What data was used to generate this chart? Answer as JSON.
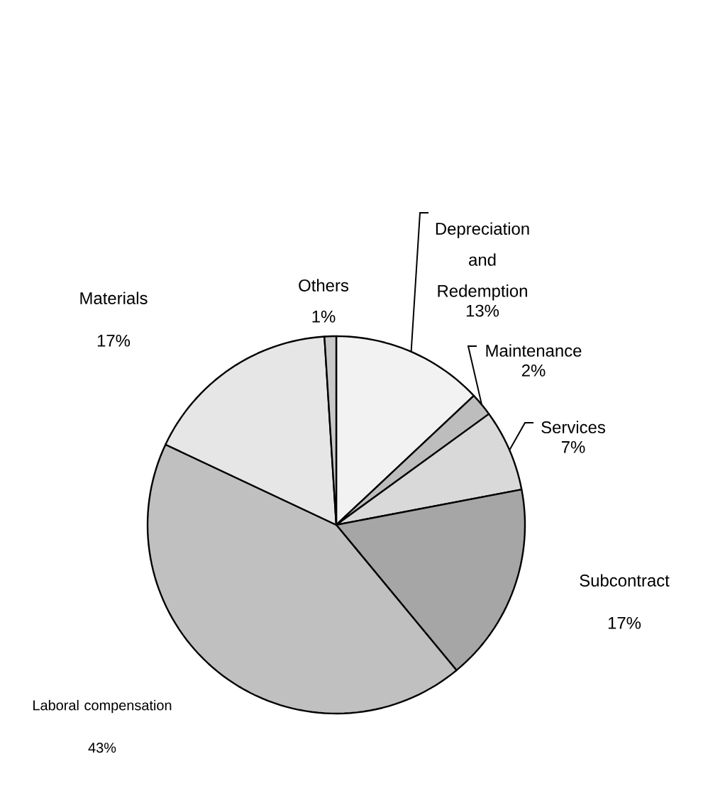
{
  "chart_data": {
    "type": "pie",
    "categories": [
      "Depreciation and Redemption",
      "Maintenance",
      "Services",
      "Subcontract",
      "Laboral compensation",
      "Materials",
      "Others"
    ],
    "values": [
      13,
      2,
      7,
      17,
      43,
      17,
      1
    ],
    "value_labels": [
      "13%",
      "2%",
      "7%",
      "17%",
      "43%",
      "17%",
      "1%"
    ],
    "colors": [
      "#f2f2f2",
      "#bdbdbd",
      "#d9d9d9",
      "#a6a6a6",
      "#c0c0c0",
      "#e6e6e6",
      "#c8c8c8"
    ]
  }
}
